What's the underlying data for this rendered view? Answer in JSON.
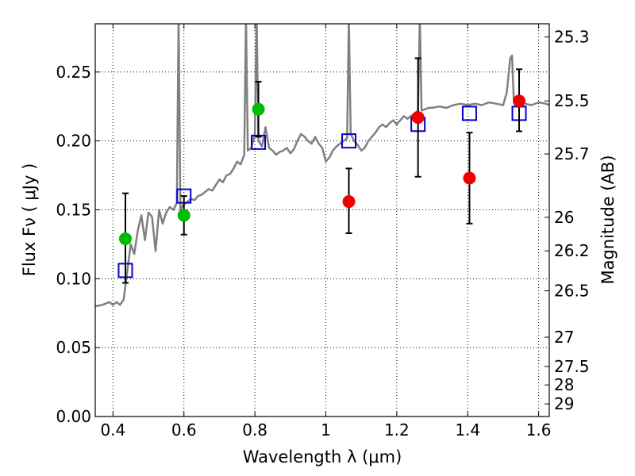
{
  "chart_data": {
    "type": "scatter",
    "xlabel": "Wavelength  λ (μm)",
    "ylabel": "Flux  Fν  ( μJy )",
    "ylabel_right": "Magnitude (AB)",
    "xlim": [
      0.35,
      1.63
    ],
    "ylim": [
      0.0,
      0.285
    ],
    "xticks": [
      0.4,
      0.6,
      0.8,
      1.0,
      1.2,
      1.4,
      1.6
    ],
    "xtick_labels": [
      "0.4",
      "0.6",
      "0.8",
      "1",
      "1.2",
      "1.4",
      "1.6"
    ],
    "yticks": [
      0.0,
      0.05,
      0.1,
      0.15,
      0.2,
      0.25
    ],
    "ytick_labels": [
      "0.00",
      "0.05",
      "0.10",
      "0.15",
      "0.20",
      "0.25"
    ],
    "right_ticks": [
      {
        "label": "25.3",
        "value": 25.3
      },
      {
        "label": "25.5",
        "value": 25.5
      },
      {
        "label": "25.7",
        "value": 25.7
      },
      {
        "label": "26",
        "value": 26.0
      },
      {
        "label": "26.2",
        "value": 26.2
      },
      {
        "label": "26.5",
        "value": 26.5
      },
      {
        "label": "27",
        "value": 27.0
      },
      {
        "label": "27.5",
        "value": 27.5
      },
      {
        "label": "28",
        "value": 28.0
      },
      {
        "label": "29",
        "value": 29.0
      }
    ],
    "grid": true,
    "series": [
      {
        "kind": "line",
        "color": "#808080",
        "points": [
          [
            0.35,
            0.08
          ],
          [
            0.37,
            0.081
          ],
          [
            0.39,
            0.083
          ],
          [
            0.4,
            0.081
          ],
          [
            0.41,
            0.083
          ],
          [
            0.42,
            0.081
          ],
          [
            0.43,
            0.085
          ],
          [
            0.44,
            0.105
          ],
          [
            0.45,
            0.125
          ],
          [
            0.46,
            0.118
          ],
          [
            0.47,
            0.135
          ],
          [
            0.48,
            0.146
          ],
          [
            0.49,
            0.128
          ],
          [
            0.5,
            0.148
          ],
          [
            0.51,
            0.145
          ],
          [
            0.52,
            0.12
          ],
          [
            0.53,
            0.15
          ],
          [
            0.54,
            0.14
          ],
          [
            0.55,
            0.148
          ],
          [
            0.56,
            0.152
          ],
          [
            0.57,
            0.15
          ],
          [
            0.58,
            0.155
          ],
          [
            0.585,
            0.29
          ],
          [
            0.59,
            0.15
          ],
          [
            0.6,
            0.154
          ],
          [
            0.61,
            0.156
          ],
          [
            0.62,
            0.158
          ],
          [
            0.63,
            0.157
          ],
          [
            0.64,
            0.16
          ],
          [
            0.65,
            0.161
          ],
          [
            0.66,
            0.163
          ],
          [
            0.67,
            0.165
          ],
          [
            0.68,
            0.164
          ],
          [
            0.69,
            0.168
          ],
          [
            0.7,
            0.172
          ],
          [
            0.71,
            0.17
          ],
          [
            0.72,
            0.175
          ],
          [
            0.73,
            0.176
          ],
          [
            0.74,
            0.18
          ],
          [
            0.75,
            0.185
          ],
          [
            0.76,
            0.183
          ],
          [
            0.77,
            0.19
          ],
          [
            0.775,
            0.29
          ],
          [
            0.78,
            0.193
          ],
          [
            0.79,
            0.195
          ],
          [
            0.8,
            0.205
          ],
          [
            0.805,
            0.29
          ],
          [
            0.81,
            0.2
          ],
          [
            0.82,
            0.196
          ],
          [
            0.83,
            0.21
          ],
          [
            0.84,
            0.195
          ],
          [
            0.85,
            0.193
          ],
          [
            0.86,
            0.19
          ],
          [
            0.87,
            0.192
          ],
          [
            0.88,
            0.193
          ],
          [
            0.89,
            0.195
          ],
          [
            0.9,
            0.191
          ],
          [
            0.91,
            0.194
          ],
          [
            0.92,
            0.2
          ],
          [
            0.93,
            0.205
          ],
          [
            0.94,
            0.203
          ],
          [
            0.95,
            0.2
          ],
          [
            0.96,
            0.198
          ],
          [
            0.97,
            0.203
          ],
          [
            0.98,
            0.198
          ],
          [
            0.99,
            0.195
          ],
          [
            1.0,
            0.185
          ],
          [
            1.01,
            0.188
          ],
          [
            1.02,
            0.193
          ],
          [
            1.03,
            0.196
          ],
          [
            1.04,
            0.198
          ],
          [
            1.05,
            0.2
          ],
          [
            1.06,
            0.202
          ],
          [
            1.065,
            0.29
          ],
          [
            1.07,
            0.205
          ],
          [
            1.08,
            0.2
          ],
          [
            1.09,
            0.197
          ],
          [
            1.1,
            0.193
          ],
          [
            1.11,
            0.195
          ],
          [
            1.12,
            0.2
          ],
          [
            1.13,
            0.203
          ],
          [
            1.14,
            0.206
          ],
          [
            1.15,
            0.21
          ],
          [
            1.16,
            0.212
          ],
          [
            1.17,
            0.21
          ],
          [
            1.18,
            0.213
          ],
          [
            1.19,
            0.215
          ],
          [
            1.2,
            0.212
          ],
          [
            1.21,
            0.215
          ],
          [
            1.22,
            0.218
          ],
          [
            1.23,
            0.216
          ],
          [
            1.24,
            0.218
          ],
          [
            1.25,
            0.22
          ],
          [
            1.26,
            0.222
          ],
          [
            1.265,
            0.29
          ],
          [
            1.27,
            0.222
          ],
          [
            1.28,
            0.223
          ],
          [
            1.29,
            0.224
          ],
          [
            1.3,
            0.224
          ],
          [
            1.32,
            0.225
          ],
          [
            1.34,
            0.224
          ],
          [
            1.36,
            0.226
          ],
          [
            1.38,
            0.227
          ],
          [
            1.4,
            0.226
          ],
          [
            1.42,
            0.227
          ],
          [
            1.44,
            0.226
          ],
          [
            1.46,
            0.228
          ],
          [
            1.48,
            0.227
          ],
          [
            1.5,
            0.226
          ],
          [
            1.51,
            0.235
          ],
          [
            1.52,
            0.26
          ],
          [
            1.525,
            0.262
          ],
          [
            1.53,
            0.23
          ],
          [
            1.54,
            0.225
          ],
          [
            1.56,
            0.227
          ],
          [
            1.58,
            0.226
          ],
          [
            1.6,
            0.228
          ],
          [
            1.62,
            0.227
          ],
          [
            1.63,
            0.226
          ]
        ]
      },
      {
        "kind": "model_squares",
        "color": "#0000cc",
        "points": [
          [
            0.435,
            0.106
          ],
          [
            0.6,
            0.16
          ],
          [
            0.81,
            0.199
          ],
          [
            1.065,
            0.2
          ],
          [
            1.26,
            0.212
          ],
          [
            1.405,
            0.22
          ],
          [
            1.545,
            0.22
          ]
        ]
      },
      {
        "kind": "observed_green",
        "color": "#00bb00",
        "points": [
          {
            "x": 0.435,
            "y": 0.129,
            "lo": 0.097,
            "hi": 0.162
          },
          {
            "x": 0.6,
            "y": 0.146,
            "lo": 0.132,
            "hi": 0.16
          },
          {
            "x": 0.81,
            "y": 0.223,
            "lo": 0.203,
            "hi": 0.243
          }
        ]
      },
      {
        "kind": "observed_red",
        "color": "#ee0000",
        "points": [
          {
            "x": 1.065,
            "y": 0.156,
            "lo": 0.133,
            "hi": 0.18
          },
          {
            "x": 1.26,
            "y": 0.217,
            "lo": 0.174,
            "hi": 0.26
          },
          {
            "x": 1.405,
            "y": 0.173,
            "lo": 0.14,
            "hi": 0.206
          },
          {
            "x": 1.545,
            "y": 0.229,
            "lo": 0.207,
            "hi": 0.252
          }
        ]
      }
    ]
  }
}
